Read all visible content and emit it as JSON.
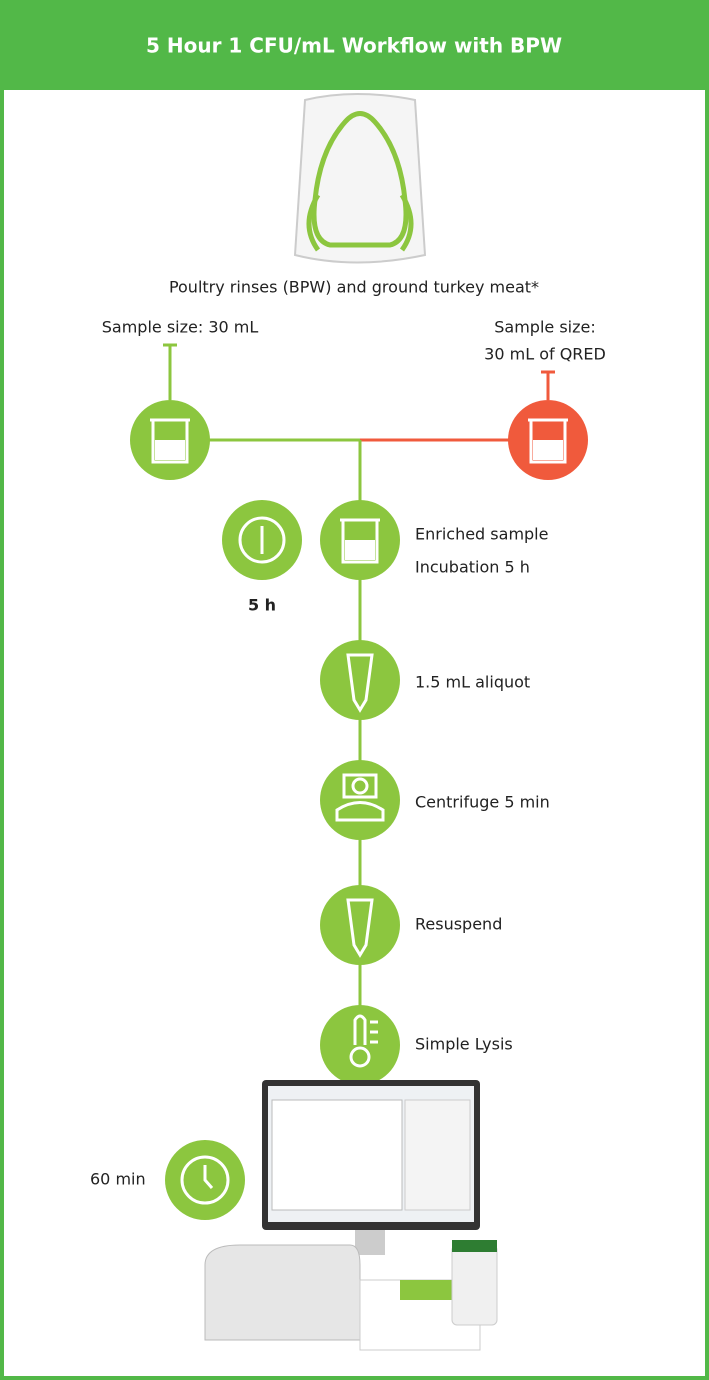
{
  "header": {
    "title": "5 Hour 1 CFU/mL Workflow with BPW"
  },
  "sample": {
    "caption": "Poultry rinses (BPW) and ground turkey meat*"
  },
  "branches": [
    {
      "lines": [
        "Sample size: 30 mL"
      ]
    },
    {
      "lines": [
        "Sample size:",
        "30 mL of QRED"
      ]
    }
  ],
  "steps": [
    {
      "lines": [
        "Enriched sample",
        "Incubation 5 h"
      ]
    },
    {
      "lines": [
        "1.5 mL aliquot"
      ]
    },
    {
      "lines": [
        "Centrifuge 5 min"
      ]
    },
    {
      "lines": [
        "Resuspend"
      ]
    },
    {
      "lines": [
        "Simple Lysis"
      ]
    }
  ],
  "timers": {
    "incubation": "5 h",
    "detection": "60 min"
  }
}
